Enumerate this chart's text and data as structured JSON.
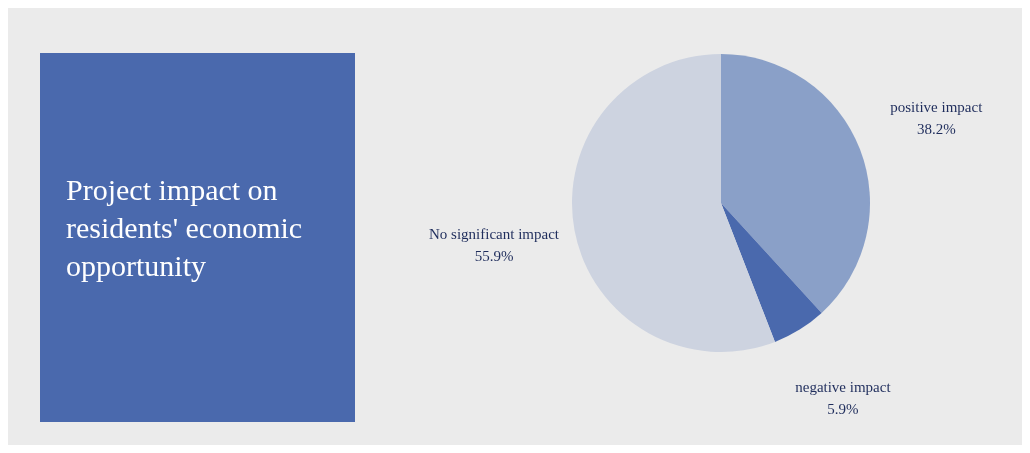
{
  "chart_data": {
    "type": "pie",
    "title": "Project impact on residents' economic opportunity",
    "categories": [
      "positive impact",
      "negative impact",
      "No significant impact"
    ],
    "values": [
      38.2,
      5.9,
      55.9
    ],
    "value_labels": [
      "38.2%",
      "5.9%",
      "55.9%"
    ],
    "colors": [
      "#8aa0c8",
      "#4a69ad",
      "#cdd3e0"
    ],
    "legend": false
  }
}
